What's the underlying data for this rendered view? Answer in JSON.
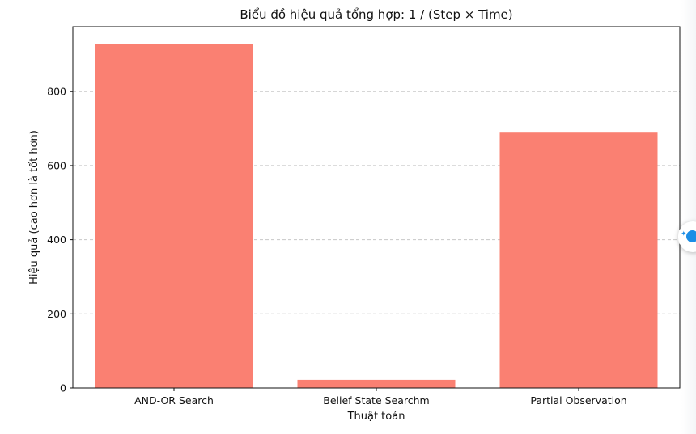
{
  "chart_data": {
    "type": "bar",
    "title": "Biểu đồ hiệu quả tổng hợp: 1 / (Step × Time)",
    "xlabel": "Thuật toán",
    "ylabel": "Hiệu quả (cao hơn là tốt hơn)",
    "categories": [
      "AND-OR Search",
      "Belief State Searchm",
      "Partial Observation"
    ],
    "values": [
      928,
      22,
      691
    ],
    "ylim": [
      0,
      975
    ],
    "yticks": [
      0,
      200,
      400,
      600,
      800
    ],
    "grid": "y-dashed",
    "bar_color": "#fa8072"
  },
  "widget": {
    "icon": "ai-assistant-icon",
    "accent": "#1c8ee6"
  }
}
